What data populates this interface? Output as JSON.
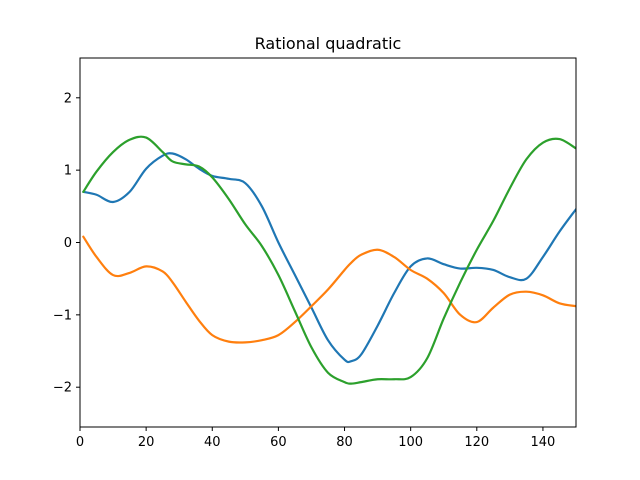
{
  "chart_data": {
    "type": "line",
    "title": "Rational quadratic",
    "xlabel": "",
    "ylabel": "",
    "xlim": [
      0,
      150
    ],
    "ylim": [
      -2.55,
      2.55
    ],
    "xticks": [
      0,
      20,
      40,
      60,
      80,
      100,
      120,
      140
    ],
    "yticks": [
      -2,
      -1,
      0,
      1,
      2
    ],
    "grid": false,
    "x": [
      1,
      5,
      10,
      15,
      20,
      25,
      28,
      32,
      36,
      40,
      45,
      50,
      55,
      60,
      65,
      70,
      75,
      80,
      82,
      85,
      90,
      95,
      100,
      105,
      110,
      115,
      120,
      125,
      130,
      135,
      140,
      145,
      150
    ],
    "series": [
      {
        "color": "#1f77b4",
        "values": [
          0.7,
          0.66,
          0.56,
          0.7,
          1.02,
          1.2,
          1.23,
          1.15,
          1.02,
          0.92,
          0.88,
          0.82,
          0.5,
          0.0,
          -0.45,
          -0.9,
          -1.35,
          -1.62,
          -1.64,
          -1.55,
          -1.15,
          -0.7,
          -0.33,
          -0.22,
          -0.3,
          -0.36,
          -0.35,
          -0.38,
          -0.48,
          -0.5,
          -0.2,
          0.15,
          0.46
        ]
      },
      {
        "color": "#ff7f0e",
        "values": [
          0.08,
          -0.2,
          -0.45,
          -0.42,
          -0.33,
          -0.4,
          -0.55,
          -0.82,
          -1.08,
          -1.28,
          -1.37,
          -1.38,
          -1.35,
          -1.28,
          -1.1,
          -0.88,
          -0.65,
          -0.38,
          -0.28,
          -0.17,
          -0.1,
          -0.2,
          -0.38,
          -0.5,
          -0.7,
          -1.0,
          -1.1,
          -0.9,
          -0.72,
          -0.68,
          -0.73,
          -0.84,
          -0.88
        ]
      },
      {
        "color": "#2ca02c",
        "values": [
          0.7,
          0.98,
          1.25,
          1.42,
          1.45,
          1.25,
          1.12,
          1.08,
          1.05,
          0.9,
          0.6,
          0.25,
          -0.05,
          -0.45,
          -0.95,
          -1.45,
          -1.8,
          -1.93,
          -1.95,
          -1.93,
          -1.89,
          -1.89,
          -1.86,
          -1.6,
          -1.05,
          -0.55,
          -0.1,
          0.3,
          0.75,
          1.15,
          1.38,
          1.43,
          1.3
        ]
      }
    ]
  }
}
